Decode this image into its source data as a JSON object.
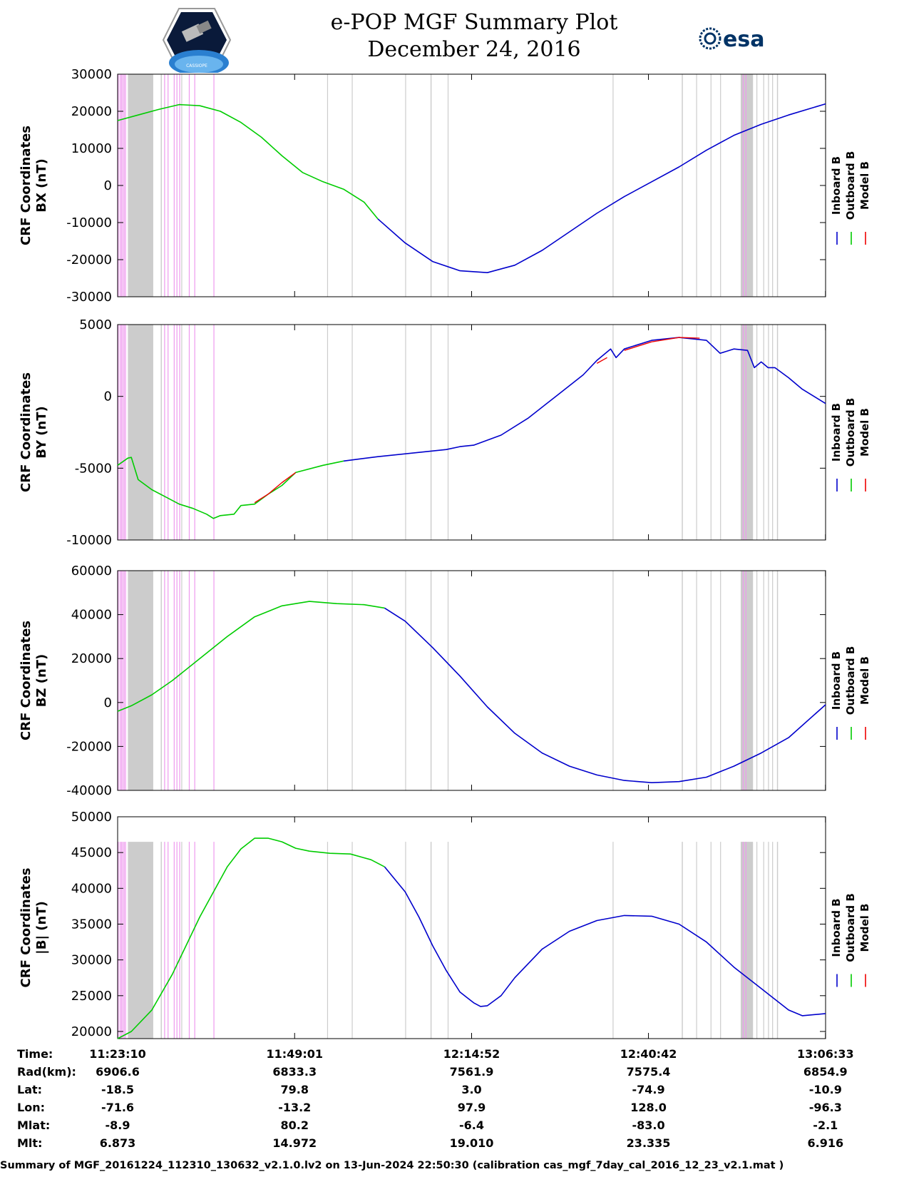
{
  "header": {
    "title": "e-POP MGF Summary Plot",
    "date": "December 24, 2016",
    "logo_left_text": "CASSIOPE",
    "logo_right_text": "esa"
  },
  "legend_labels": [
    "Inboard B",
    "Outboard B",
    "Model B"
  ],
  "colors": {
    "inboard": "#0000cc",
    "outboard": "#00cc00",
    "model": "#ee0000",
    "gray_band": "#cccccc",
    "pink_band": "#ee99ee"
  },
  "time_table": {
    "rows": [
      {
        "label": "Time:",
        "values": [
          "11:23:10",
          "11:49:01",
          "12:14:52",
          "12:40:42",
          "13:06:33"
        ]
      },
      {
        "label": "Rad(km):",
        "values": [
          "6906.6",
          "6833.3",
          "7561.9",
          "7575.4",
          "6854.9"
        ]
      },
      {
        "label": "Lat:",
        "values": [
          "-18.5",
          "79.8",
          "3.0",
          "-74.9",
          "-10.9"
        ]
      },
      {
        "label": "Lon:",
        "values": [
          "-71.6",
          "-13.2",
          "97.9",
          "128.0",
          "-96.3"
        ]
      },
      {
        "label": "Mlat:",
        "values": [
          "-8.9",
          "80.2",
          "-6.4",
          "-83.0",
          "-2.1"
        ]
      },
      {
        "label": "Mlt:",
        "values": [
          "6.873",
          "14.972",
          "19.010",
          "23.335",
          "6.916"
        ]
      }
    ]
  },
  "footer": "Summary of MGF_20161224_112310_130632_v2.1.0.lv2 on 13-Jun-2024 22:50:30 (calibration cas_mgf_7day_cal_2016_12_23_v2.1.mat )",
  "chart_data": [
    {
      "type": "line",
      "ylabel": [
        "CRF Coordinates",
        "BX (nT)"
      ],
      "ylim": [
        -30000,
        30000
      ],
      "yticks": [
        30000,
        20000,
        10000,
        0,
        -10000,
        -20000,
        -30000
      ],
      "xlim_minutes": [
        0,
        103.4
      ],
      "series": [
        {
          "name": "Outboard B",
          "color_key": "outboard",
          "x": [
            0,
            3,
            6,
            9,
            12,
            15,
            18,
            21,
            24,
            27,
            30,
            33,
            36,
            38
          ],
          "y": [
            17500,
            19000,
            20500,
            21800,
            21500,
            20000,
            17000,
            13000,
            8000,
            3500,
            1000,
            -1000,
            -4500,
            -9000
          ]
        },
        {
          "name": "Inboard B",
          "color_key": "inboard",
          "x": [
            38,
            42,
            46,
            50,
            54,
            58,
            62,
            66,
            70,
            74,
            78,
            82,
            86,
            90,
            94,
            98,
            103.4
          ],
          "y": [
            -9000,
            -15500,
            -20500,
            -23000,
            -23500,
            -21500,
            -17500,
            -12500,
            -7500,
            -3000,
            1000,
            5000,
            9500,
            13500,
            16500,
            19000,
            22000
          ]
        }
      ]
    },
    {
      "type": "line",
      "ylabel": [
        "CRF Coordinates",
        "BY (nT)"
      ],
      "ylim": [
        -10000,
        5000
      ],
      "yticks": [
        5000,
        0,
        -5000,
        -10000
      ],
      "xlim_minutes": [
        0,
        103.4
      ],
      "series": [
        {
          "name": "Outboard B",
          "color_key": "outboard",
          "x": [
            0,
            1.5,
            2,
            3,
            5,
            7,
            9,
            11,
            13,
            14,
            15,
            17,
            18,
            20,
            22,
            24,
            26,
            30,
            33
          ],
          "y": [
            -4800,
            -4300,
            -4250,
            -5800,
            -6500,
            -7000,
            -7500,
            -7800,
            -8200,
            -8500,
            -8300,
            -8200,
            -7600,
            -7500,
            -6800,
            -6200,
            -5300,
            -4800,
            -4500
          ]
        },
        {
          "name": "Model B",
          "color_key": "model",
          "x": [
            20,
            22,
            24,
            26
          ],
          "y": [
            -7400,
            -6800,
            -6000,
            -5300
          ]
        },
        {
          "name": "Inboard B",
          "color_key": "inboard",
          "x": [
            33,
            38,
            44,
            48,
            50,
            52,
            56,
            60,
            64,
            68,
            70,
            72,
            72.8,
            74,
            78,
            82,
            86,
            88,
            90,
            92,
            93,
            94,
            95,
            96,
            98,
            100,
            103.4
          ],
          "y": [
            -4500,
            -4200,
            -3900,
            -3700,
            -3500,
            -3400,
            -2700,
            -1500,
            0,
            1500,
            2500,
            3300,
            2700,
            3300,
            3900,
            4100,
            3900,
            3000,
            3300,
            3200,
            2000,
            2400,
            2000,
            2000,
            1300,
            500,
            -500
          ]
        },
        {
          "name": "Model B",
          "color_key": "model",
          "x": [
            70,
            71.5
          ],
          "y": [
            2300,
            2700
          ]
        },
        {
          "name": "Model B",
          "color_key": "model",
          "x": [
            74,
            78,
            82,
            85
          ],
          "y": [
            3200,
            3800,
            4100,
            4050
          ]
        }
      ]
    },
    {
      "type": "line",
      "ylabel": [
        "CRF Coordinates",
        "BZ (nT)"
      ],
      "ylim": [
        -40000,
        60000
      ],
      "yticks": [
        60000,
        40000,
        20000,
        0,
        -20000,
        -40000
      ],
      "xlim_minutes": [
        0,
        103.4
      ],
      "series": [
        {
          "name": "Outboard B",
          "color_key": "outboard",
          "x": [
            0,
            2,
            5,
            8,
            12,
            16,
            20,
            24,
            28,
            32,
            36,
            39
          ],
          "y": [
            -4000,
            -1500,
            3500,
            10000,
            20000,
            30000,
            39000,
            44000,
            46000,
            45000,
            44500,
            43000
          ]
        },
        {
          "name": "Inboard B",
          "color_key": "inboard",
          "x": [
            39,
            42,
            46,
            50,
            54,
            58,
            62,
            66,
            70,
            74,
            78,
            82,
            86,
            90,
            94,
            98,
            103.4
          ],
          "y": [
            43000,
            37000,
            25000,
            12000,
            -2000,
            -14000,
            -23000,
            -29000,
            -33000,
            -35500,
            -36500,
            -36000,
            -34000,
            -29000,
            -23000,
            -16000,
            -1000
          ]
        }
      ]
    },
    {
      "type": "line",
      "ylabel": [
        "CRF Coordinates",
        "|B| (nT)"
      ],
      "ylim": [
        19000,
        50000
      ],
      "yticks": [
        50000,
        45000,
        40000,
        35000,
        30000,
        25000,
        20000
      ],
      "xlim_minutes": [
        0,
        103.4
      ],
      "series": [
        {
          "name": "Outboard B",
          "color_key": "outboard",
          "x": [
            0,
            2,
            5,
            8,
            12,
            16,
            18,
            20,
            22,
            24,
            26,
            28,
            31,
            34,
            37,
            39
          ],
          "y": [
            19000,
            20000,
            23000,
            28000,
            36000,
            43000,
            45500,
            47000,
            47000,
            46500,
            45600,
            45200,
            44900,
            44800,
            44000,
            43000
          ]
        },
        {
          "name": "Inboard B",
          "color_key": "inboard",
          "x": [
            39,
            42,
            44,
            46,
            48,
            50,
            52,
            53,
            54,
            56,
            58,
            62,
            66,
            70,
            74,
            78,
            82,
            86,
            90,
            94,
            98,
            100,
            103.4
          ],
          "y": [
            43000,
            39500,
            36000,
            32000,
            28500,
            25500,
            24000,
            23500,
            23600,
            25000,
            27500,
            31500,
            34000,
            35500,
            36200,
            36100,
            35000,
            32500,
            29000,
            26000,
            23000,
            22200,
            22500
          ]
        }
      ]
    }
  ]
}
